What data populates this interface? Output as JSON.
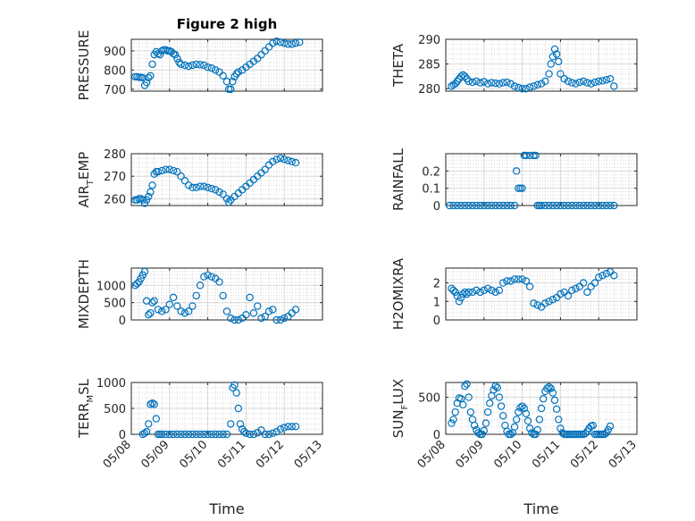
{
  "figure_title": "Figure 2 high",
  "colors": {
    "marker": "#0072bd",
    "axis": "#262626",
    "grid": "#d9d9d9"
  },
  "chart_data": [
    {
      "id": "pressure",
      "type": "scatter",
      "title": "Figure 2 high",
      "ylabel": "PRESSURE",
      "ylabel_sub": "",
      "ylabel_tail": "",
      "ylim": [
        690,
        960
      ],
      "yticks": [
        700,
        800,
        900
      ],
      "ytick_labels": [
        "700",
        "800",
        "900"
      ],
      "xlim": [
        8,
        13
      ],
      "xticks": [
        8,
        9,
        10,
        11,
        12,
        13
      ],
      "xtick_labels": [],
      "xlabel": "",
      "grid": true,
      "x": [
        8.1,
        8.15,
        8.2,
        8.25,
        8.3,
        8.35,
        8.4,
        8.45,
        8.5,
        8.55,
        8.6,
        8.65,
        8.7,
        8.75,
        8.8,
        8.85,
        8.9,
        8.95,
        9.0,
        9.05,
        9.1,
        9.15,
        9.2,
        9.25,
        9.3,
        9.4,
        9.5,
        9.6,
        9.7,
        9.8,
        9.9,
        10.0,
        10.1,
        10.2,
        10.3,
        10.4,
        10.5,
        10.55,
        10.6,
        10.65,
        10.7,
        10.75,
        10.8,
        10.9,
        11.0,
        11.1,
        11.2,
        11.3,
        11.4,
        11.5,
        11.6,
        11.7,
        11.8,
        11.9,
        12.0,
        12.1,
        12.2,
        12.3,
        12.4
      ],
      "y": [
        765,
        765,
        762,
        762,
        760,
        720,
        735,
        760,
        770,
        830,
        880,
        895,
        885,
        880,
        900,
        905,
        905,
        900,
        900,
        895,
        885,
        880,
        860,
        840,
        830,
        825,
        820,
        825,
        830,
        828,
        825,
        815,
        810,
        800,
        790,
        770,
        740,
        700,
        700,
        740,
        765,
        780,
        790,
        800,
        815,
        830,
        845,
        860,
        880,
        900,
        920,
        940,
        950,
        945,
        940,
        935,
        935,
        940,
        945
      ]
    },
    {
      "id": "theta",
      "type": "scatter",
      "title": "",
      "ylabel": "THETA",
      "ylabel_sub": "",
      "ylabel_tail": "",
      "ylim": [
        279.5,
        290
      ],
      "yticks": [
        280,
        285,
        290
      ],
      "ytick_labels": [
        "280",
        "285",
        "290"
      ],
      "xlim": [
        8,
        13
      ],
      "xticks": [
        8,
        9,
        10,
        11,
        12,
        13
      ],
      "xtick_labels": [],
      "xlabel": "",
      "grid": true,
      "x": [
        8.15,
        8.2,
        8.25,
        8.3,
        8.35,
        8.4,
        8.45,
        8.5,
        8.55,
        8.6,
        8.7,
        8.8,
        8.9,
        9.0,
        9.1,
        9.2,
        9.3,
        9.4,
        9.5,
        9.6,
        9.7,
        9.8,
        9.9,
        10.0,
        10.1,
        10.2,
        10.3,
        10.4,
        10.5,
        10.6,
        10.7,
        10.75,
        10.8,
        10.85,
        10.9,
        10.95,
        11.0,
        11.1,
        11.2,
        11.3,
        11.4,
        11.5,
        11.6,
        11.7,
        11.8,
        11.9,
        12.0,
        12.1,
        12.2,
        12.3,
        12.4
      ],
      "y": [
        280.5,
        280.8,
        281.0,
        281.5,
        282.0,
        282.5,
        282.8,
        282.5,
        282.0,
        281.5,
        281.3,
        281.5,
        281.2,
        281.4,
        281.0,
        281.2,
        281.1,
        281.0,
        281.2,
        281.3,
        281.0,
        280.5,
        280.2,
        280.0,
        280.0,
        280.3,
        280.5,
        280.8,
        281.0,
        281.5,
        283.0,
        285.0,
        286.5,
        288.0,
        287.0,
        285.5,
        283.0,
        282.0,
        281.5,
        281.2,
        281.0,
        281.3,
        281.5,
        281.2,
        281.0,
        281.3,
        281.5,
        281.6,
        281.8,
        282.0,
        280.5
      ]
    },
    {
      "id": "air_temp",
      "type": "scatter",
      "title": "",
      "ylabel": "AIR",
      "ylabel_sub": "T",
      "ylabel_tail": "EMP",
      "ylim": [
        257,
        280
      ],
      "yticks": [
        260,
        270,
        280
      ],
      "ytick_labels": [
        "260",
        "270",
        "280"
      ],
      "xlim": [
        8,
        13
      ],
      "xticks": [
        8,
        9,
        10,
        11,
        12,
        13
      ],
      "xtick_labels": [],
      "xlabel": "",
      "grid": true,
      "x": [
        8.1,
        8.15,
        8.2,
        8.25,
        8.3,
        8.35,
        8.4,
        8.45,
        8.5,
        8.55,
        8.6,
        8.65,
        8.7,
        8.8,
        8.9,
        9.0,
        9.1,
        9.2,
        9.3,
        9.4,
        9.5,
        9.6,
        9.7,
        9.8,
        9.9,
        10.0,
        10.1,
        10.2,
        10.3,
        10.4,
        10.5,
        10.55,
        10.6,
        10.7,
        10.8,
        10.9,
        11.0,
        11.1,
        11.2,
        11.3,
        11.4,
        11.5,
        11.6,
        11.7,
        11.8,
        11.9,
        12.0,
        12.1,
        12.2,
        12.3
      ],
      "y": [
        259.5,
        259.5,
        260,
        260,
        259.5,
        258,
        259.5,
        261,
        263,
        266,
        271,
        272,
        272,
        272.5,
        273,
        273,
        272.5,
        272,
        270,
        268,
        266,
        265,
        265,
        265.5,
        265.5,
        265,
        264.5,
        264,
        263,
        262,
        260,
        258.5,
        259.5,
        261,
        262.5,
        264,
        265.5,
        267,
        268.5,
        270,
        271.5,
        273,
        275,
        276.5,
        277.5,
        278,
        277.5,
        277,
        276.5,
        276
      ]
    },
    {
      "id": "rainfall",
      "type": "scatter",
      "title": "",
      "ylabel": "RAINFALL",
      "ylabel_sub": "",
      "ylabel_tail": "",
      "ylim": [
        0,
        0.3
      ],
      "yticks": [
        0,
        0.1,
        0.2
      ],
      "ytick_labels": [
        "0",
        "0.1",
        "0.2"
      ],
      "xlim": [
        8,
        13
      ],
      "xticks": [
        8,
        9,
        10,
        11,
        12,
        13
      ],
      "xtick_labels": [],
      "xlabel": "",
      "grid": true,
      "x": [
        8.1,
        8.2,
        8.3,
        8.4,
        8.5,
        8.6,
        8.7,
        8.8,
        8.9,
        9.0,
        9.1,
        9.2,
        9.3,
        9.4,
        9.5,
        9.6,
        9.7,
        9.8,
        9.85,
        9.9,
        9.95,
        10.0,
        10.05,
        10.1,
        10.2,
        10.3,
        10.35,
        10.4,
        10.45,
        10.5,
        10.6,
        10.7,
        10.8,
        10.9,
        11.0,
        11.1,
        11.2,
        11.3,
        11.4,
        11.5,
        11.6,
        11.7,
        11.8,
        11.9,
        12.0,
        12.1,
        12.2,
        12.3,
        12.4
      ],
      "y": [
        0,
        0,
        0,
        0,
        0,
        0,
        0,
        0,
        0,
        0,
        0,
        0,
        0,
        0,
        0,
        0,
        0,
        0,
        0.2,
        0.1,
        0.1,
        0.1,
        0.29,
        0.29,
        0.29,
        0.29,
        0.29,
        0,
        0,
        0,
        0,
        0,
        0,
        0,
        0,
        0,
        0,
        0,
        0,
        0,
        0,
        0,
        0,
        0,
        0,
        0,
        0,
        0,
        0
      ]
    },
    {
      "id": "mixdepth",
      "type": "scatter",
      "title": "",
      "ylabel": "MIXDEPTH",
      "ylabel_sub": "",
      "ylabel_tail": "",
      "ylim": [
        0,
        1500
      ],
      "yticks": [
        0,
        500,
        1000
      ],
      "ytick_labels": [
        "0",
        "500",
        "1000"
      ],
      "xlim": [
        8,
        13
      ],
      "xticks": [
        8,
        9,
        10,
        11,
        12,
        13
      ],
      "xtick_labels": [],
      "xlabel": "",
      "grid": true,
      "x": [
        8.1,
        8.15,
        8.2,
        8.25,
        8.3,
        8.35,
        8.4,
        8.45,
        8.5,
        8.55,
        8.6,
        8.7,
        8.8,
        8.9,
        9.0,
        9.1,
        9.2,
        9.3,
        9.4,
        9.5,
        9.6,
        9.7,
        9.8,
        9.9,
        10.0,
        10.1,
        10.2,
        10.3,
        10.4,
        10.5,
        10.6,
        10.7,
        10.8,
        10.9,
        11.0,
        11.1,
        11.2,
        11.3,
        11.4,
        11.5,
        11.6,
        11.7,
        11.8,
        11.9,
        12.0,
        12.1,
        12.2,
        12.3
      ],
      "y": [
        1000,
        1050,
        1100,
        1200,
        1300,
        1400,
        550,
        150,
        200,
        500,
        550,
        300,
        250,
        300,
        450,
        650,
        400,
        250,
        200,
        250,
        400,
        700,
        1000,
        1250,
        1300,
        1250,
        1200,
        1100,
        700,
        250,
        50,
        0,
        0,
        50,
        150,
        650,
        200,
        400,
        50,
        100,
        250,
        300,
        0,
        0,
        50,
        100,
        200,
        300
      ]
    },
    {
      "id": "h2omixra",
      "type": "scatter",
      "title": "",
      "ylabel": "H2OMIXRA",
      "ylabel_sub": "",
      "ylabel_tail": "",
      "ylim": [
        0,
        2.8
      ],
      "yticks": [
        0,
        1,
        2
      ],
      "ytick_labels": [
        "0",
        "1",
        "2"
      ],
      "xlim": [
        8,
        13
      ],
      "xticks": [
        8,
        9,
        10,
        11,
        12,
        13
      ],
      "xtick_labels": [],
      "xlabel": "",
      "grid": true,
      "x": [
        8.15,
        8.2,
        8.25,
        8.3,
        8.35,
        8.4,
        8.45,
        8.5,
        8.55,
        8.6,
        8.7,
        8.8,
        8.9,
        9.0,
        9.1,
        9.2,
        9.3,
        9.4,
        9.5,
        9.6,
        9.7,
        9.8,
        9.9,
        10.0,
        10.1,
        10.2,
        10.3,
        10.4,
        10.5,
        10.6,
        10.7,
        10.8,
        10.9,
        11.0,
        11.1,
        11.2,
        11.3,
        11.4,
        11.5,
        11.6,
        11.7,
        11.8,
        11.9,
        12.0,
        12.1,
        12.2,
        12.3,
        12.4
      ],
      "y": [
        1.7,
        1.6,
        1.5,
        1.3,
        1.0,
        1.2,
        1.4,
        1.5,
        1.4,
        1.5,
        1.5,
        1.6,
        1.5,
        1.6,
        1.7,
        1.6,
        1.5,
        1.6,
        2.0,
        2.1,
        2.1,
        2.2,
        2.2,
        2.2,
        2.1,
        1.8,
        0.9,
        0.8,
        0.7,
        0.9,
        1.0,
        1.1,
        1.2,
        1.4,
        1.5,
        1.3,
        1.6,
        1.7,
        1.8,
        2.0,
        1.5,
        1.8,
        2.0,
        2.3,
        2.4,
        2.5,
        2.6,
        2.4
      ]
    },
    {
      "id": "terr_msl",
      "type": "scatter",
      "title": "",
      "ylabel": "TERR",
      "ylabel_sub": "M",
      "ylabel_tail": "SL",
      "ylim": [
        0,
        1000
      ],
      "yticks": [
        0,
        500,
        1000
      ],
      "ytick_labels": [
        "0",
        "500",
        "1000"
      ],
      "xlim": [
        8,
        13
      ],
      "xticks": [
        8,
        9,
        10,
        11,
        12,
        13
      ],
      "xtick_labels": [
        "05/08",
        "05/09",
        "05/10",
        "05/11",
        "05/12",
        "05/13"
      ],
      "xlabel": "Time",
      "grid": true,
      "x": [
        8.3,
        8.35,
        8.4,
        8.45,
        8.5,
        8.55,
        8.6,
        8.65,
        8.7,
        8.75,
        8.8,
        8.9,
        9.0,
        9.1,
        9.2,
        9.3,
        9.4,
        9.5,
        9.6,
        9.7,
        9.8,
        9.9,
        10.0,
        10.1,
        10.2,
        10.3,
        10.4,
        10.5,
        10.6,
        10.65,
        10.7,
        10.75,
        10.8,
        10.85,
        10.9,
        10.95,
        11.0,
        11.1,
        11.2,
        11.3,
        11.4,
        11.5,
        11.6,
        11.7,
        11.8,
        11.9,
        12.0,
        12.1,
        12.2,
        12.3
      ],
      "y": [
        0,
        20,
        50,
        200,
        580,
        600,
        580,
        300,
        0,
        0,
        0,
        0,
        0,
        0,
        0,
        0,
        0,
        0,
        0,
        0,
        0,
        0,
        0,
        0,
        0,
        0,
        0,
        0,
        200,
        900,
        950,
        800,
        500,
        200,
        100,
        50,
        20,
        0,
        0,
        30,
        80,
        0,
        0,
        20,
        50,
        100,
        130,
        150,
        150,
        150
      ]
    },
    {
      "id": "sun_flux",
      "type": "scatter",
      "title": "",
      "ylabel": "SUN",
      "ylabel_sub": "F",
      "ylabel_tail": "LUX",
      "ylim": [
        0,
        700
      ],
      "yticks": [
        0,
        500
      ],
      "ytick_labels": [
        "0",
        "500"
      ],
      "xlim": [
        8,
        13
      ],
      "xticks": [
        8,
        9,
        10,
        11,
        12,
        13
      ],
      "xtick_labels": [
        "05/08",
        "05/09",
        "05/10",
        "05/11",
        "05/12",
        "05/13"
      ],
      "xlabel": "Time",
      "grid": true,
      "x": [
        8.15,
        8.2,
        8.25,
        8.3,
        8.35,
        8.4,
        8.45,
        8.5,
        8.55,
        8.6,
        8.65,
        8.7,
        8.75,
        8.8,
        8.85,
        8.9,
        8.95,
        9.0,
        9.05,
        9.1,
        9.15,
        9.2,
        9.25,
        9.3,
        9.35,
        9.4,
        9.45,
        9.5,
        9.55,
        9.6,
        9.65,
        9.7,
        9.75,
        9.8,
        9.85,
        9.9,
        9.95,
        10.0,
        10.05,
        10.1,
        10.15,
        10.2,
        10.25,
        10.3,
        10.35,
        10.4,
        10.45,
        10.5,
        10.55,
        10.6,
        10.65,
        10.7,
        10.75,
        10.8,
        10.85,
        10.9,
        10.95,
        11.0,
        11.05,
        11.1,
        11.15,
        11.2,
        11.25,
        11.3,
        11.35,
        11.4,
        11.45,
        11.5,
        11.55,
        11.6,
        11.65,
        11.7,
        11.75,
        11.8,
        11.85,
        11.9,
        11.95,
        12.0,
        12.05,
        12.1,
        12.15,
        12.2,
        12.25,
        12.3
      ],
      "y": [
        150,
        200,
        300,
        420,
        490,
        480,
        400,
        650,
        680,
        500,
        300,
        200,
        120,
        60,
        20,
        0,
        0,
        50,
        150,
        300,
        420,
        520,
        600,
        650,
        630,
        500,
        380,
        250,
        120,
        40,
        0,
        0,
        20,
        100,
        200,
        300,
        360,
        380,
        350,
        280,
        180,
        80,
        20,
        0,
        0,
        60,
        200,
        350,
        480,
        580,
        620,
        640,
        620,
        560,
        460,
        340,
        200,
        80,
        20,
        0,
        0,
        0,
        0,
        0,
        0,
        0,
        0,
        0,
        0,
        0,
        10,
        40,
        80,
        110,
        120,
        0,
        0,
        0,
        0,
        0,
        0,
        20,
        60,
        110
      ]
    }
  ]
}
